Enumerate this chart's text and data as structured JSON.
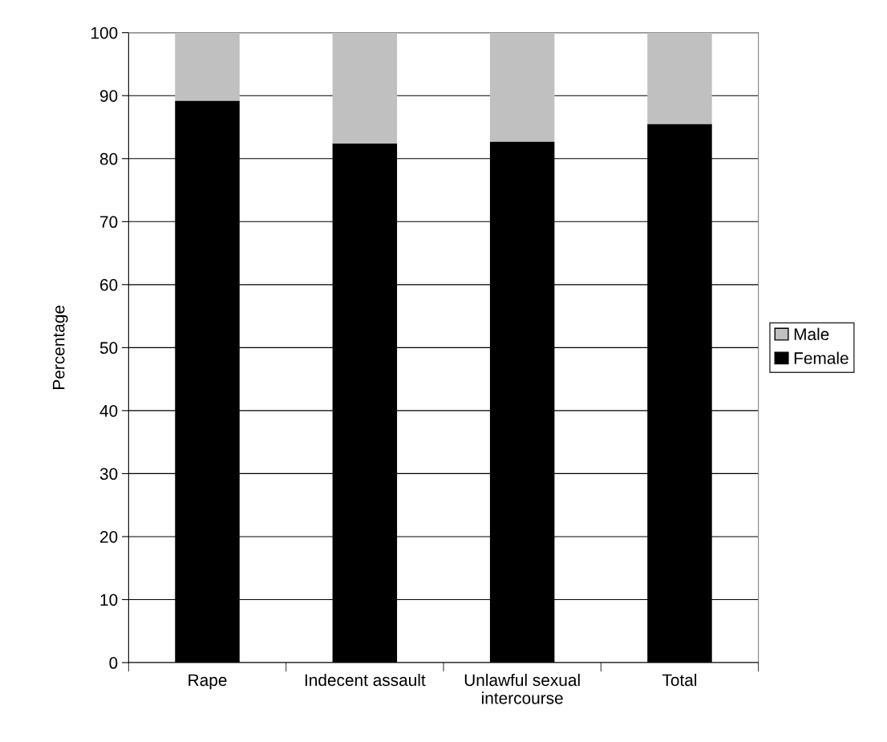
{
  "chart_data": {
    "type": "bar",
    "stacked": true,
    "ylabel": "Percentage",
    "categories": [
      "Rape",
      "Indecent assault",
      "Unlawful sexual intercourse",
      "Total"
    ],
    "series": [
      {
        "name": "Female",
        "color": "#000000",
        "values": [
          89.2,
          82.4,
          82.7,
          85.5
        ]
      },
      {
        "name": "Male",
        "color": "#c0c0c0",
        "values": [
          10.8,
          17.6,
          17.3,
          14.5
        ]
      }
    ],
    "ylim": [
      0,
      100
    ],
    "yticks": [
      0,
      10,
      20,
      30,
      40,
      50,
      60,
      70,
      80,
      90,
      100
    ],
    "grid": "y",
    "legend": "right"
  }
}
